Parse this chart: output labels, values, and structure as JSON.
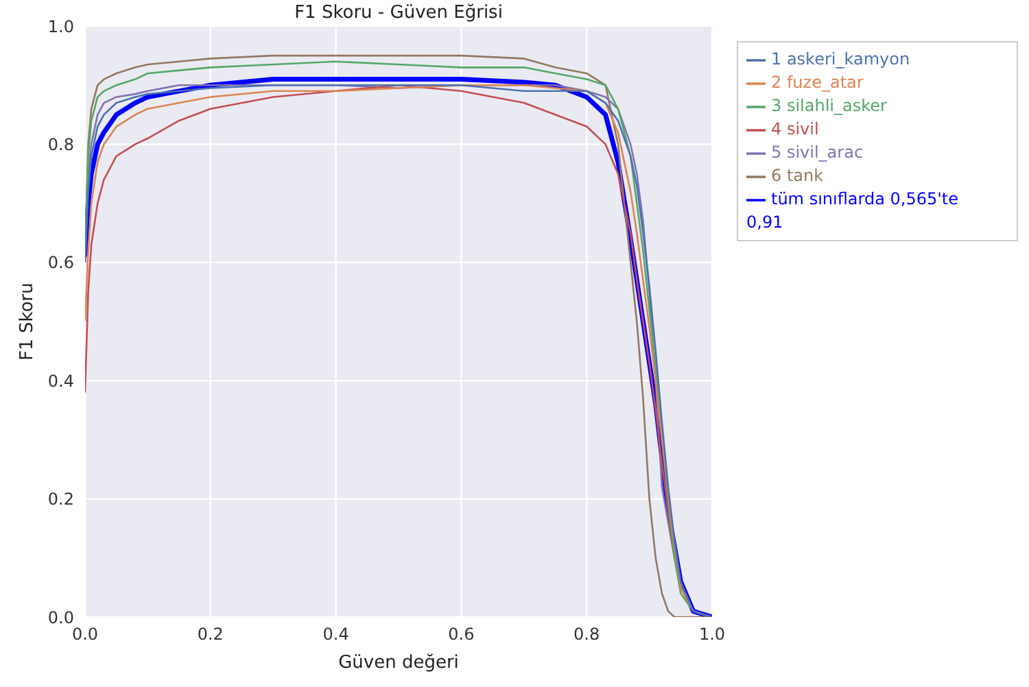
{
  "chart_data": {
    "type": "line",
    "title": "F1 Skoru - Güven Eğrisi",
    "xlabel": "Güven değeri",
    "ylabel": "F1 Skoru",
    "x": [
      0,
      0.005,
      0.01,
      0.02,
      0.03,
      0.05,
      0.08,
      0.1,
      0.15,
      0.2,
      0.3,
      0.4,
      0.5,
      0.6,
      0.7,
      0.75,
      0.8,
      0.83,
      0.85,
      0.87,
      0.88,
      0.89,
      0.9,
      0.91,
      0.92,
      0.93,
      0.94,
      0.95,
      0.97,
      1.0
    ],
    "series": [
      {
        "name": "1 askeri_kamyon",
        "color": "#4c72b0",
        "values": [
          0.6,
          0.72,
          0.78,
          0.83,
          0.85,
          0.87,
          0.88,
          0.885,
          0.89,
          0.895,
          0.9,
          0.9,
          0.9,
          0.9,
          0.89,
          0.89,
          0.89,
          0.87,
          0.84,
          0.78,
          0.73,
          0.65,
          0.56,
          0.45,
          0.33,
          0.22,
          0.13,
          0.06,
          0.01,
          0
        ]
      },
      {
        "name": "2 fuze_atar",
        "color": "#dd8452",
        "values": [
          0.5,
          0.62,
          0.7,
          0.77,
          0.8,
          0.83,
          0.85,
          0.86,
          0.87,
          0.88,
          0.89,
          0.89,
          0.895,
          0.9,
          0.9,
          0.895,
          0.89,
          0.87,
          0.82,
          0.72,
          0.65,
          0.57,
          0.49,
          0.4,
          0.3,
          0.21,
          0.12,
          0.05,
          0.01,
          0
        ]
      },
      {
        "name": "3 silahli_asker",
        "color": "#55a868",
        "values": [
          0.62,
          0.78,
          0.84,
          0.88,
          0.89,
          0.9,
          0.91,
          0.92,
          0.925,
          0.93,
          0.935,
          0.94,
          0.935,
          0.93,
          0.93,
          0.92,
          0.91,
          0.9,
          0.86,
          0.78,
          0.7,
          0.62,
          0.52,
          0.42,
          0.3,
          0.2,
          0.1,
          0.04,
          0.01,
          0
        ]
      },
      {
        "name": "4 sivil",
        "color": "#c44e52",
        "values": [
          0.38,
          0.55,
          0.63,
          0.7,
          0.74,
          0.78,
          0.8,
          0.81,
          0.84,
          0.86,
          0.88,
          0.89,
          0.9,
          0.89,
          0.87,
          0.85,
          0.83,
          0.8,
          0.75,
          0.65,
          0.57,
          0.5,
          0.43,
          0.35,
          0.26,
          0.18,
          0.1,
          0.05,
          0.01,
          0
        ]
      },
      {
        "name": "5 sivil_arac",
        "color": "#8172b3",
        "values": [
          0.6,
          0.75,
          0.8,
          0.85,
          0.87,
          0.88,
          0.885,
          0.89,
          0.9,
          0.9,
          0.9,
          0.9,
          0.895,
          0.9,
          0.9,
          0.9,
          0.89,
          0.88,
          0.86,
          0.8,
          0.75,
          0.67,
          0.55,
          0.4,
          0.22,
          0.16,
          0.1,
          0.05,
          0.01,
          0
        ]
      },
      {
        "name": "6 tank",
        "color": "#937860",
        "values": [
          0.62,
          0.8,
          0.86,
          0.9,
          0.91,
          0.92,
          0.93,
          0.935,
          0.94,
          0.945,
          0.95,
          0.95,
          0.95,
          0.95,
          0.945,
          0.93,
          0.92,
          0.9,
          0.8,
          0.6,
          0.5,
          0.37,
          0.2,
          0.1,
          0.04,
          0.01,
          0,
          0,
          0,
          0
        ]
      },
      {
        "name": "tüm sınıflarda 0,565'te 0,91",
        "color": "#0000ff",
        "values": [
          0.61,
          0.7,
          0.75,
          0.8,
          0.82,
          0.85,
          0.87,
          0.88,
          0.89,
          0.9,
          0.91,
          0.91,
          0.91,
          0.91,
          0.905,
          0.9,
          0.88,
          0.85,
          0.77,
          0.64,
          0.57,
          0.5,
          0.43,
          0.36,
          0.27,
          0.18,
          0.12,
          0.06,
          0.01,
          0
        ]
      }
    ],
    "xlim": [
      0,
      1
    ],
    "ylim": [
      0,
      1
    ],
    "xticks": [
      {
        "value": 0,
        "label": "0.0"
      },
      {
        "value": 0.2,
        "label": "0.2"
      },
      {
        "value": 0.4,
        "label": "0.4"
      },
      {
        "value": 0.6,
        "label": "0.6"
      },
      {
        "value": 0.8,
        "label": "0.8"
      },
      {
        "value": 1,
        "label": "1.0"
      }
    ],
    "yticks": [
      {
        "value": 0,
        "label": "0.0"
      },
      {
        "value": 0.2,
        "label": "0.2"
      },
      {
        "value": 0.4,
        "label": "0.4"
      },
      {
        "value": 0.6,
        "label": "0.6"
      },
      {
        "value": 0.8,
        "label": "0.8"
      },
      {
        "value": 1,
        "label": "1.0"
      }
    ],
    "grid": true,
    "legend": "top right",
    "marker": "none",
    "line_style": "solid"
  }
}
